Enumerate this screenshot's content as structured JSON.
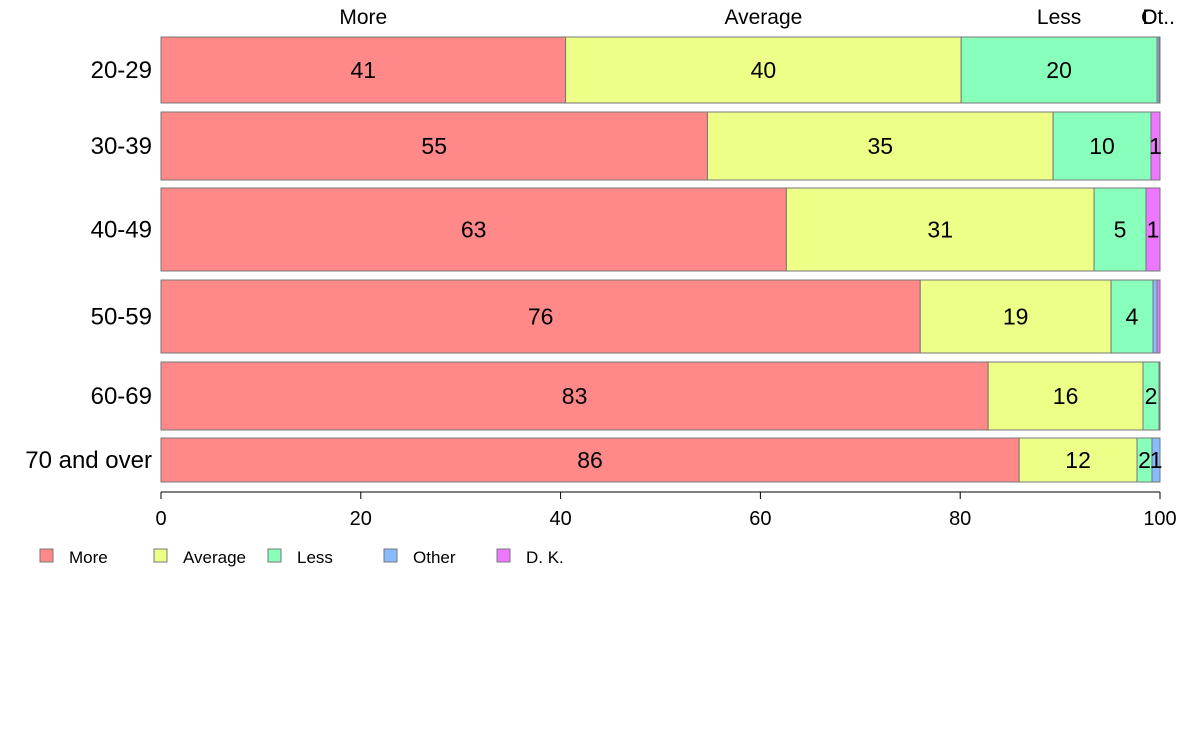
{
  "chart_data": {
    "type": "bar",
    "orientation": "horizontal",
    "stacked": true,
    "categories": [
      "20-29",
      "30-39",
      "40-49",
      "50-59",
      "60-69",
      "70 and over"
    ],
    "series": [
      {
        "name": "More",
        "color": "#ff8888",
        "values": [
          40.5,
          54.7,
          62.6,
          76.0,
          82.8,
          85.9
        ],
        "labels": [
          "41",
          "55",
          "63",
          "76",
          "83",
          "86"
        ]
      },
      {
        "name": "Average",
        "color": "#eeff88",
        "values": [
          39.6,
          34.6,
          30.8,
          19.1,
          15.5,
          11.8
        ],
        "labels": [
          "40",
          "35",
          "31",
          "19",
          "16",
          "12"
        ]
      },
      {
        "name": "Less",
        "color": "#88ffbb",
        "values": [
          19.6,
          9.8,
          5.2,
          4.2,
          1.6,
          1.5
        ],
        "labels": [
          "20",
          "10",
          "5",
          "4",
          "2",
          "2"
        ]
      },
      {
        "name": "Other",
        "color": "#88bbff",
        "values": [
          0.2,
          0.0,
          0.0,
          0.4,
          0.0,
          0.8
        ],
        "labels": [
          "",
          "",
          "",
          "",
          "",
          "1"
        ]
      },
      {
        "name": "D. K.",
        "color": "#ee77ff",
        "values": [
          0.1,
          0.9,
          1.4,
          0.3,
          0.1,
          0.0
        ],
        "labels": [
          "",
          "1",
          "1",
          "",
          "",
          ""
        ]
      }
    ],
    "top_labels": [
      "More",
      "Average",
      "Less",
      "Ot.."
    ],
    "top_labels_overlap": [
      "",
      "",
      "",
      "D"
    ],
    "xlim": [
      0,
      100
    ],
    "xticks": [
      "0",
      "20",
      "40",
      "60",
      "80",
      "100"
    ],
    "xtick_values": [
      0,
      20,
      40,
      60,
      80,
      100
    ],
    "grid": false,
    "legend_position": "bottom-left",
    "title": "",
    "xlabel": "",
    "ylabel": ""
  }
}
